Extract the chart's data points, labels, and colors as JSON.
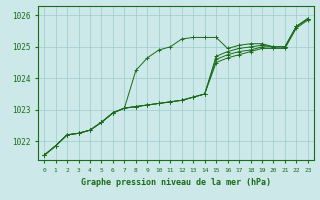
{
  "bg_color": "#cce8e8",
  "grid_color": "#99cccc",
  "line_color": "#1a6b1a",
  "text_color": "#1a6b1a",
  "xlabel": "Graphe pression niveau de la mer (hPa)",
  "ylim": [
    1021.4,
    1026.3
  ],
  "xlim": [
    -0.5,
    23.5
  ],
  "yticks": [
    1022,
    1023,
    1024,
    1025,
    1026
  ],
  "xticks": [
    0,
    1,
    2,
    3,
    4,
    5,
    6,
    7,
    8,
    9,
    10,
    11,
    12,
    13,
    14,
    15,
    16,
    17,
    18,
    19,
    20,
    21,
    22,
    23
  ],
  "series": [
    [
      1021.55,
      1021.85,
      1022.2,
      1022.25,
      1022.35,
      1022.6,
      1022.9,
      1023.05,
      1024.25,
      1024.65,
      1024.9,
      1025.0,
      1025.25,
      1025.3,
      1025.3,
      1025.3,
      1024.95,
      1025.05,
      1025.1,
      1025.1,
      1025.0,
      1025.0,
      1025.65,
      1025.9
    ],
    [
      1021.55,
      1021.85,
      1022.2,
      1022.25,
      1022.35,
      1022.6,
      1022.9,
      1023.05,
      1023.1,
      1023.15,
      1023.2,
      1023.25,
      1023.3,
      1023.4,
      1023.5,
      1024.7,
      1024.85,
      1024.95,
      1025.0,
      1025.05,
      1025.0,
      1025.0,
      1025.65,
      1025.9
    ],
    [
      1021.55,
      1021.85,
      1022.2,
      1022.25,
      1022.35,
      1022.6,
      1022.9,
      1023.05,
      1023.1,
      1023.15,
      1023.2,
      1023.25,
      1023.3,
      1023.4,
      1023.5,
      1024.6,
      1024.75,
      1024.85,
      1024.9,
      1025.0,
      1025.0,
      1025.0,
      1025.65,
      1025.9
    ],
    [
      1021.55,
      1021.85,
      1022.2,
      1022.25,
      1022.35,
      1022.6,
      1022.9,
      1023.05,
      1023.1,
      1023.15,
      1023.2,
      1023.25,
      1023.3,
      1023.4,
      1023.5,
      1024.5,
      1024.65,
      1024.75,
      1024.85,
      1024.95,
      1024.95,
      1024.95,
      1025.6,
      1025.85
    ]
  ]
}
